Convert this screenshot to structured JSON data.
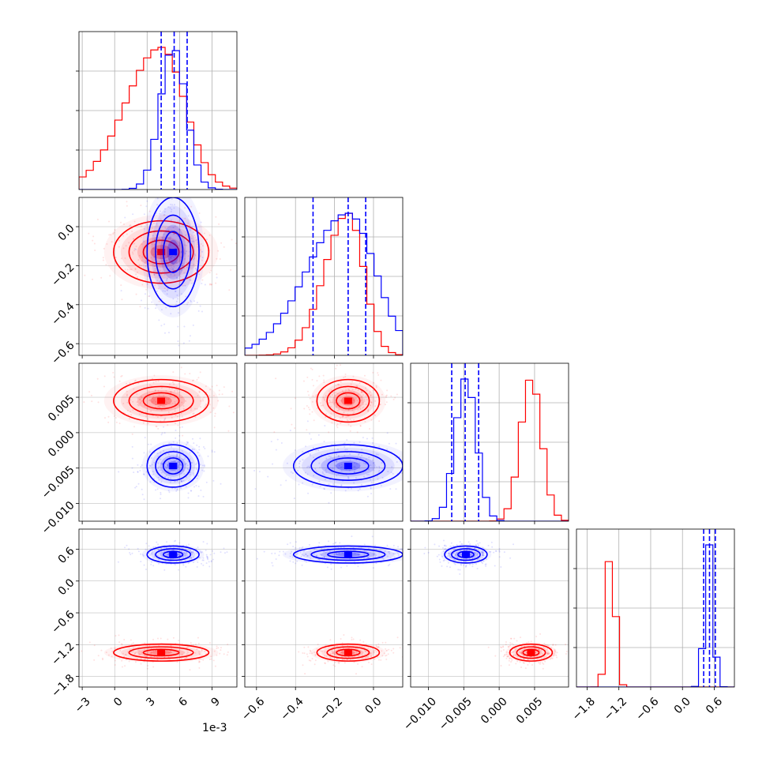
{
  "colors": {
    "series_a": "#ff0000",
    "series_b": "#0000ff",
    "grid": "#b0b0b0"
  },
  "offset_text": "1e-3",
  "chart_data": {
    "type": "corner",
    "grid": true,
    "parameters": [
      {
        "ticks": [
          -3,
          0,
          3,
          6,
          9
        ],
        "tick_labels": [
          "−3",
          "0",
          "3",
          "6",
          "9"
        ],
        "range": [
          -3.3,
          11.3
        ]
      },
      {
        "ticks": [
          -0.6,
          -0.4,
          -0.2,
          0.0
        ],
        "tick_labels": [
          "−0.6",
          "−0.4",
          "−0.2",
          "0.0"
        ],
        "range": [
          -0.66,
          0.15
        ]
      },
      {
        "ticks": [
          -0.01,
          -0.005,
          0.0,
          0.005
        ],
        "tick_labels": [
          "−0.010",
          "−0.005",
          "0.000",
          "0.005"
        ],
        "range": [
          -0.0125,
          0.0098
        ]
      },
      {
        "ticks": [
          -1.8,
          -1.2,
          -0.6,
          0.0,
          0.6
        ],
        "tick_labels": [
          "−1.8",
          "−1.2",
          "−0.6",
          "0.0",
          "0.6"
        ],
        "range": [
          -2.0,
          0.98
        ]
      }
    ],
    "series": [
      {
        "color": "red",
        "marginals": [
          {
            "peak": 4.3,
            "sigma": 2.2,
            "skew": "left"
          },
          {
            "peak": -0.13,
            "sigma": 0.08,
            "skew": "left"
          },
          {
            "peak": 0.0045,
            "sigma": 0.0015
          },
          {
            "peak": -1.35,
            "sigma": 0.08
          }
        ],
        "quantiles": []
      },
      {
        "color": "blue",
        "marginals": [
          {
            "peak": 5.4,
            "sigma": 1.2
          },
          {
            "peak": -0.13,
            "sigma": 0.14,
            "skew": "left"
          },
          {
            "peak": -0.0047,
            "sigma": 0.0015
          },
          {
            "peak": 0.5,
            "sigma": 0.08
          }
        ],
        "quantiles": [
          [
            4.3,
            5.5,
            6.7
          ],
          [
            -0.31,
            -0.13,
            -0.04
          ],
          [
            -0.0067,
            -0.0048,
            -0.0029
          ],
          [
            0.4,
            0.51,
            0.62
          ]
        ]
      }
    ]
  }
}
